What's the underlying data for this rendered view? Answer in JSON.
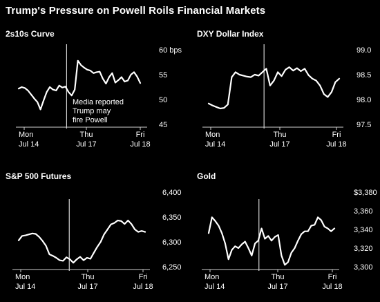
{
  "title": "Trump's Pressure on Powell Roils Financial Markets",
  "colors": {
    "background": "#000000",
    "line": "#ffffff",
    "text": "#ffffff",
    "axis": "#cfcfcf"
  },
  "chart_data": [
    {
      "type": "line",
      "title": "2s10s Curve",
      "ylim": [
        45,
        60
      ],
      "y_ticks": [
        "60 bps",
        "55",
        "50",
        "45"
      ],
      "y_tick_values": [
        60,
        55,
        50,
        45
      ],
      "x_ticks": [
        {
          "top": "Mon",
          "bottom": "Jul 14"
        },
        {
          "top": "Thu",
          "bottom": "Jul 17"
        },
        {
          "top": "Fri",
          "bottom": "Jul 18"
        }
      ],
      "event_marker": true,
      "annotation": [
        "Media reported",
        "Trump may",
        "fire Powell"
      ],
      "series": [
        {
          "values": [
            52.2,
            52.5,
            52.3,
            51.8,
            51.0,
            50.2,
            49.5,
            48.0,
            49.8,
            51.5,
            52.5,
            52.0,
            51.8,
            52.8,
            52.4,
            52.6,
            51.5,
            50.8,
            52.0,
            57.8,
            56.9,
            56.4,
            56.0,
            55.8,
            55.3,
            55.5,
            55.6,
            54.2,
            53.2,
            54.5,
            55.3,
            53.4,
            53.9,
            54.5,
            53.6,
            53.8,
            55.0,
            55.5,
            54.6,
            53.3
          ]
        }
      ]
    },
    {
      "type": "line",
      "title": "DXY Dollar Index",
      "ylim": [
        97.5,
        99.0
      ],
      "y_ticks": [
        "99.0",
        "98.5",
        "98.0",
        "97.5"
      ],
      "y_tick_values": [
        99.0,
        98.5,
        98.0,
        97.5
      ],
      "x_ticks": [
        {
          "top": "Mon",
          "bottom": "Jul 14"
        },
        {
          "top": "Thu",
          "bottom": "Jul 17"
        },
        {
          "top": "Fri",
          "bottom": "Jul 18"
        }
      ],
      "event_marker": true,
      "series": [
        {
          "values": [
            97.92,
            97.88,
            97.85,
            97.82,
            97.83,
            97.9,
            98.45,
            98.55,
            98.5,
            98.48,
            98.46,
            98.45,
            98.5,
            98.48,
            98.55,
            98.62,
            98.28,
            98.38,
            98.55,
            98.47,
            98.6,
            98.65,
            98.58,
            98.63,
            98.57,
            98.62,
            98.49,
            98.42,
            98.38,
            98.28,
            98.11,
            98.05,
            98.15,
            98.35,
            98.42
          ]
        }
      ]
    },
    {
      "type": "line",
      "title": "S&P 500 Futures",
      "ylim": [
        6250,
        6400
      ],
      "y_ticks": [
        "6,400",
        "6,350",
        "6,300",
        "6,250"
      ],
      "y_tick_values": [
        6400,
        6350,
        6300,
        6250
      ],
      "x_ticks": [
        {
          "top": "Mon",
          "bottom": "Jul 14"
        },
        {
          "top": "Thu",
          "bottom": "Jul 17"
        },
        {
          "top": "Fri",
          "bottom": "Jul 18"
        }
      ],
      "event_marker": true,
      "series": [
        {
          "values": [
            6303,
            6312,
            6313,
            6315,
            6317,
            6316,
            6310,
            6302,
            6292,
            6275,
            6272,
            6268,
            6263,
            6262,
            6269,
            6265,
            6258,
            6265,
            6270,
            6263,
            6268,
            6266,
            6278,
            6290,
            6300,
            6315,
            6325,
            6335,
            6338,
            6343,
            6342,
            6336,
            6343,
            6336,
            6325,
            6320,
            6322,
            6320
          ]
        }
      ]
    },
    {
      "type": "line",
      "title": "Gold",
      "ylim": [
        3300,
        3380
      ],
      "y_ticks": [
        "$3,380",
        "3,360",
        "3,340",
        "3,320",
        "3,300"
      ],
      "y_tick_values": [
        3380,
        3360,
        3340,
        3320,
        3300
      ],
      "x_ticks": [
        {
          "top": "Mon",
          "bottom": "Jul 14"
        },
        {
          "top": "Thu",
          "bottom": "Jul 17"
        },
        {
          "top": "Fri",
          "bottom": "Jul 18"
        }
      ],
      "event_marker": true,
      "series": [
        {
          "values": [
            3336,
            3353,
            3349,
            3344,
            3336,
            3325,
            3308,
            3318,
            3322,
            3320,
            3324,
            3327,
            3320,
            3312,
            3325,
            3328,
            3341,
            3330,
            3333,
            3328,
            3332,
            3334,
            3312,
            3302,
            3305,
            3315,
            3320,
            3328,
            3335,
            3338,
            3338,
            3344,
            3345,
            3353,
            3350,
            3343,
            3341,
            3338,
            3341
          ]
        }
      ]
    }
  ]
}
